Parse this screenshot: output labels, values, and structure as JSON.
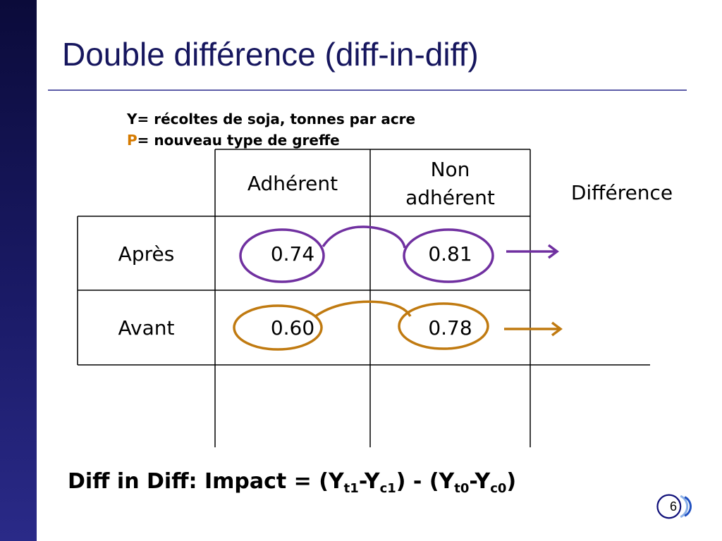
{
  "slide": {
    "title": "Double différence (diff-in-diff)",
    "page_number": "6"
  },
  "definitions": {
    "y_line": "Y= récoltes de soja, tonnes par acre",
    "p_letter": "P",
    "p_rest": "= nouveau type de greffe"
  },
  "table": {
    "headers": {
      "adherent": "Adhérent",
      "non_adherent_line1": "Non",
      "non_adherent_line2": "adhérent",
      "difference": "Différence"
    },
    "rows": {
      "apres": {
        "label": "Après",
        "adherent": "0.74",
        "non_adherent": "0.81"
      },
      "avant": {
        "label": "Avant",
        "adherent": "0.60",
        "non_adherent": "0.78"
      }
    }
  },
  "formula": {
    "prefix": "Diff in Diff: Impact = (Y",
    "sub_t1": "t1",
    "dash1": "-Y",
    "sub_c1": "c1",
    "middle": ") - (Y",
    "sub_t0": "t0",
    "dash2": "-Y",
    "sub_c0": "c0",
    "suffix": ")"
  },
  "colors": {
    "title": "#16165e",
    "sidebar": "#1a1a66",
    "apres_annotation": "#7030a0",
    "avant_annotation": "#c07a10",
    "p_letter": "#d57a00"
  }
}
